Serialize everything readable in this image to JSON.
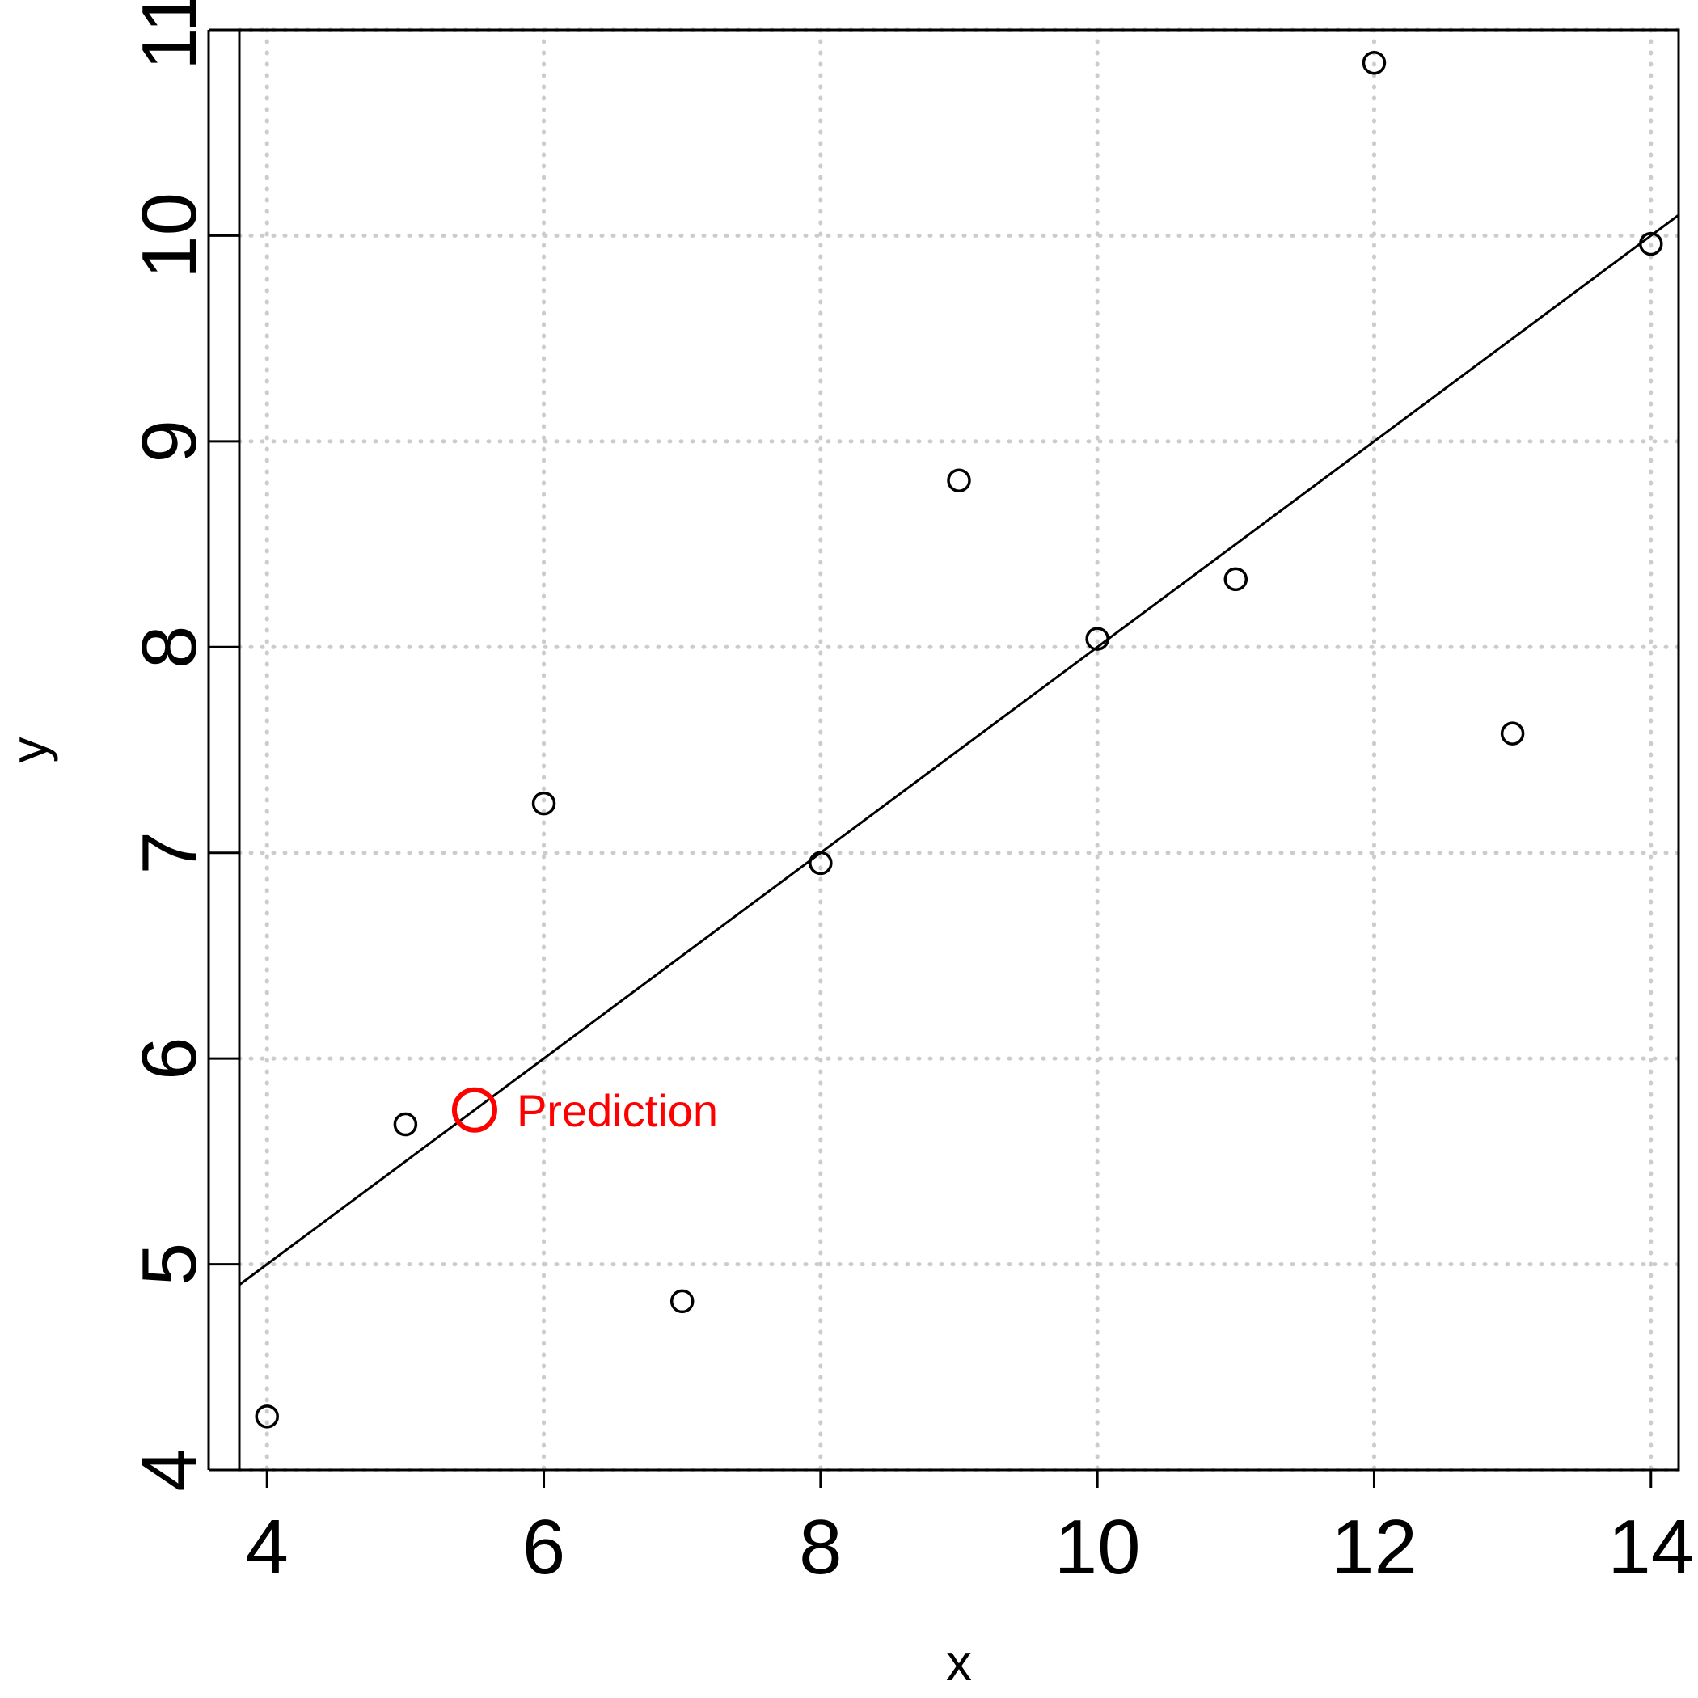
{
  "chart_data": {
    "type": "scatter",
    "title": "",
    "xlabel": "x",
    "ylabel": "y",
    "xlim": [
      3.8,
      14.2
    ],
    "ylim": [
      4,
      11
    ],
    "grid": true,
    "x_ticks": [
      "4",
      "6",
      "8",
      "10",
      "12",
      "14"
    ],
    "y_ticks": [
      "4",
      "5",
      "6",
      "7",
      "8",
      "9",
      "10",
      "11"
    ],
    "series": [
      {
        "points": [
          {
            "x": 4,
            "y": 4.26
          },
          {
            "x": 5,
            "y": 5.68
          },
          {
            "x": 6,
            "y": 7.24
          },
          {
            "x": 7,
            "y": 4.82
          },
          {
            "x": 8,
            "y": 6.95
          },
          {
            "x": 9,
            "y": 8.81
          },
          {
            "x": 10,
            "y": 8.04
          },
          {
            "x": 11,
            "y": 8.33
          },
          {
            "x": 12,
            "y": 10.84
          },
          {
            "x": 13,
            "y": 7.58
          },
          {
            "x": 14,
            "y": 9.96
          }
        ]
      }
    ],
    "fit_line": {
      "intercept": 3.0,
      "slope": 0.5
    },
    "prediction": {
      "x": 5.5,
      "y": 5.75,
      "label": "Prediction",
      "color": "#ff0000"
    },
    "colors": {
      "points": "#000000",
      "grid": "#cccccc",
      "line": "#000000"
    }
  }
}
